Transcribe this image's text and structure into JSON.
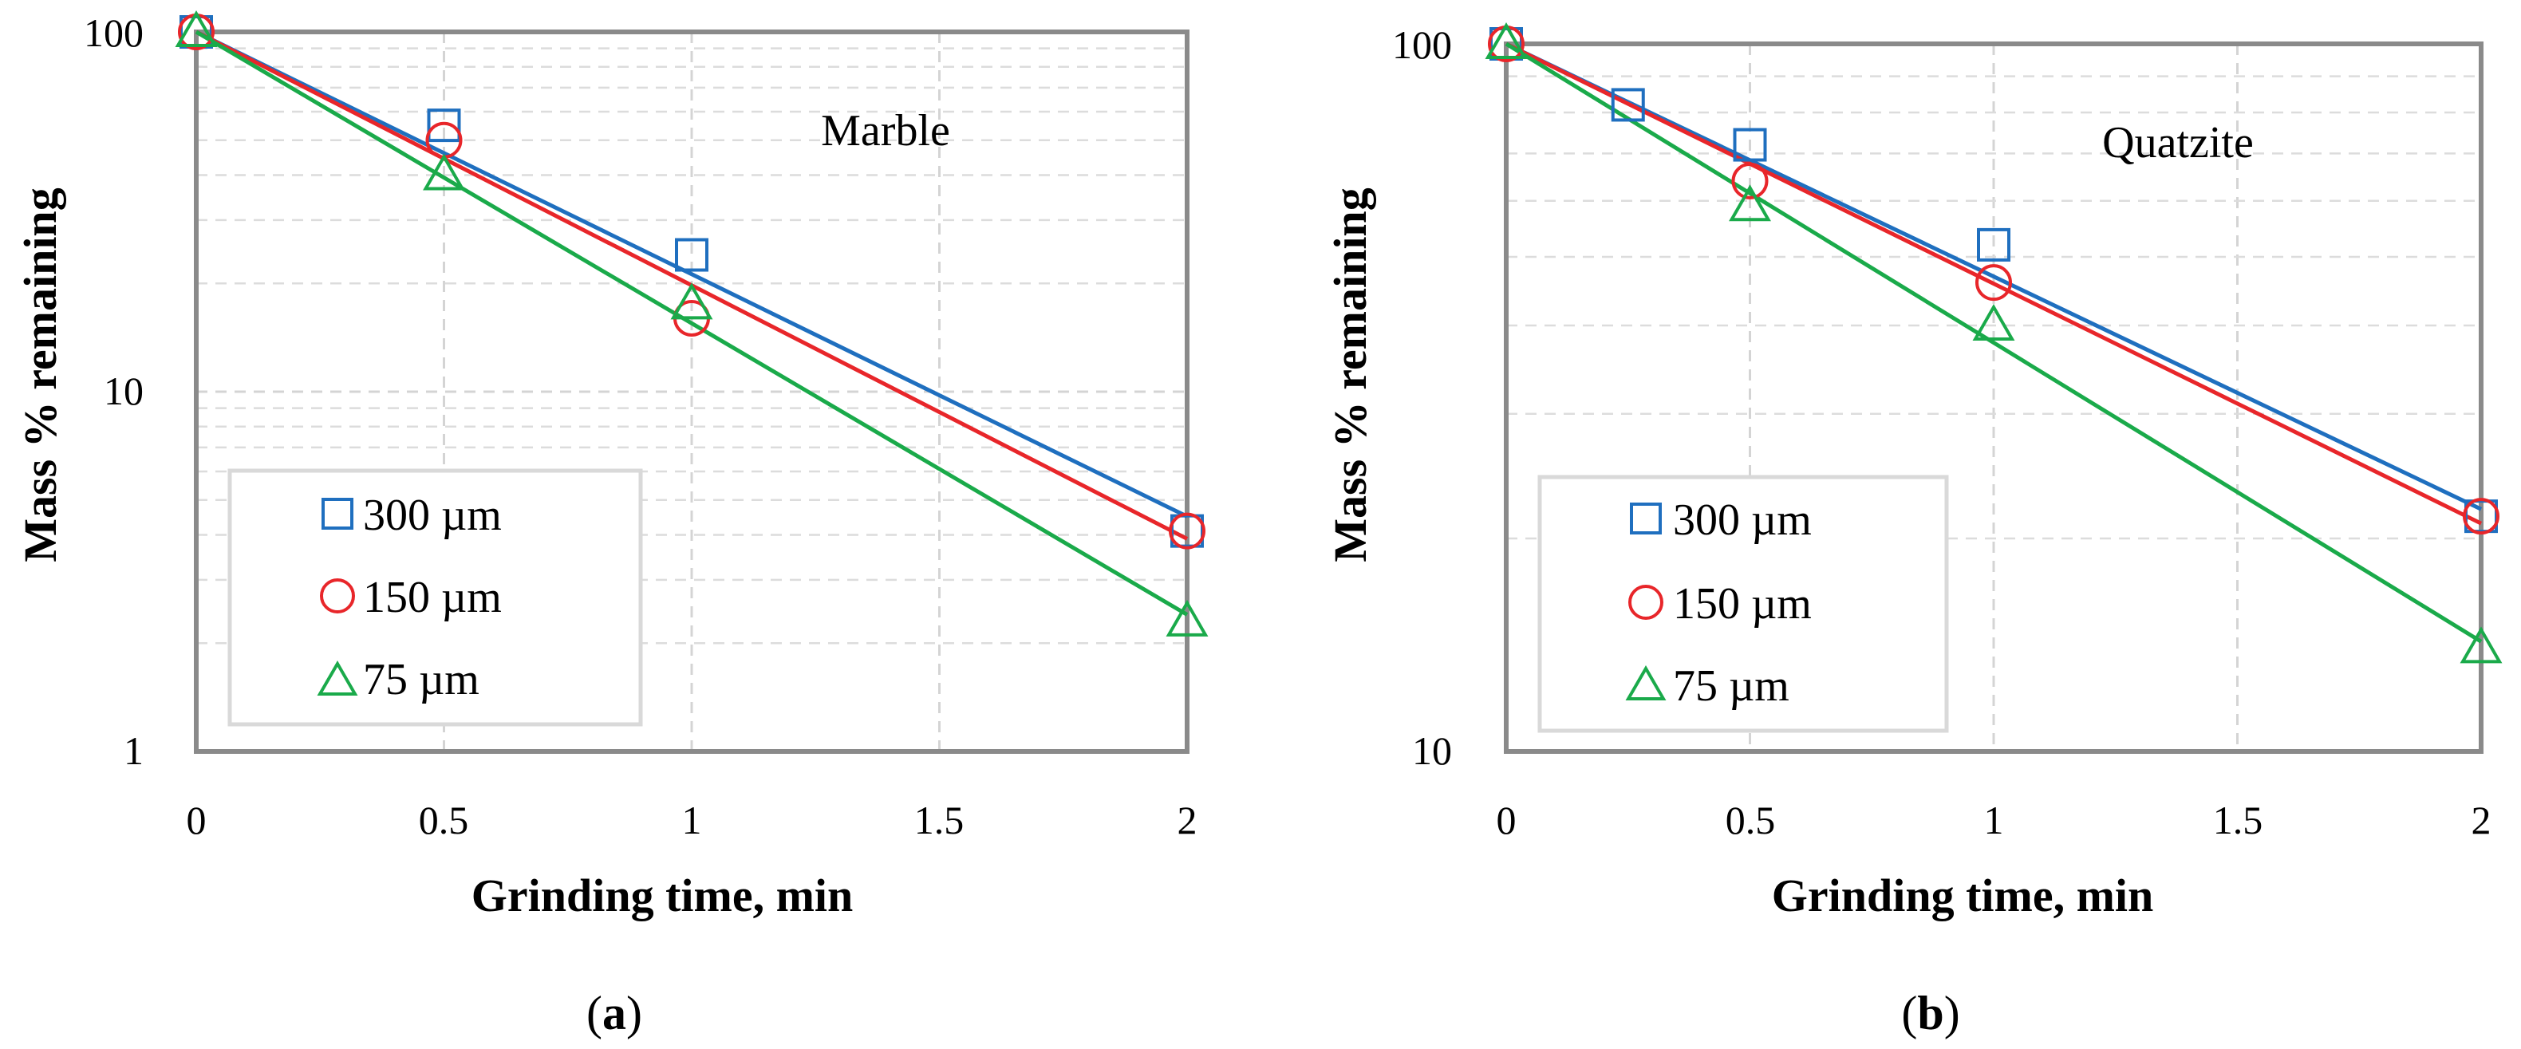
{
  "chart_data": [
    {
      "type": "scatter",
      "panel_label": "(a)",
      "panel_letter": "a",
      "annotation": "Marble",
      "title": "",
      "xlabel": "Grinding time, min",
      "ylabel": "Mass % remaining",
      "xlim": [
        0,
        2
      ],
      "ylim": [
        1,
        100
      ],
      "yscale": "log",
      "xticks": [
        0,
        0.5,
        1,
        1.5,
        2
      ],
      "xtick_labels": [
        "0",
        "0.5",
        "1",
        "1.5",
        "2"
      ],
      "yticks": [
        1,
        10,
        100
      ],
      "ytick_labels": [
        "1",
        "10",
        "100"
      ],
      "grid": true,
      "legend_position": "lower-left",
      "series": [
        {
          "name": "300 µm",
          "marker": "square",
          "color": "#1f6fbf",
          "x": [
            0,
            0.5,
            1,
            2
          ],
          "y": [
            100,
            55,
            24,
            4.1
          ],
          "fit": {
            "x": [
              0,
              2
            ],
            "y": [
              100,
              4.5
            ]
          }
        },
        {
          "name": "150 µm",
          "marker": "circle",
          "color": "#e8262a",
          "x": [
            0,
            0.5,
            1,
            2
          ],
          "y": [
            100,
            50,
            16,
            4.1
          ],
          "fit": {
            "x": [
              0,
              2
            ],
            "y": [
              100,
              3.9
            ]
          }
        },
        {
          "name": "75 µm",
          "marker": "triangle",
          "color": "#1aaa4a",
          "x": [
            0,
            0.5,
            1,
            2
          ],
          "y": [
            100,
            40,
            17.5,
            2.3
          ],
          "fit": {
            "x": [
              0,
              2
            ],
            "y": [
              100,
              2.4
            ]
          }
        }
      ]
    },
    {
      "type": "scatter",
      "panel_label": "(b)",
      "panel_letter": "b",
      "annotation": "Quatzite",
      "title": "",
      "xlabel": "Grinding time, min",
      "ylabel": "Mass % remaining",
      "xlim": [
        0,
        2
      ],
      "ylim": [
        10,
        100
      ],
      "yscale": "log",
      "xticks": [
        0,
        0.5,
        1,
        1.5,
        2
      ],
      "xtick_labels": [
        "0",
        "0.5",
        "1",
        "1.5",
        "2"
      ],
      "yticks": [
        10,
        100
      ],
      "ytick_labels": [
        "10",
        "100"
      ],
      "grid": true,
      "legend_position": "lower-left",
      "series": [
        {
          "name": "300 µm",
          "marker": "square",
          "color": "#1f6fbf",
          "x": [
            0,
            0.25,
            0.5,
            1,
            2
          ],
          "y": [
            100,
            82,
            72,
            52,
            21.5
          ],
          "fit": {
            "x": [
              0,
              2
            ],
            "y": [
              100,
              22
            ]
          }
        },
        {
          "name": "150 µm",
          "marker": "circle",
          "color": "#e8262a",
          "x": [
            0,
            0.5,
            1,
            2
          ],
          "y": [
            100,
            64,
            46,
            21.5
          ],
          "fit": {
            "x": [
              0,
              2
            ],
            "y": [
              100,
              21
            ]
          }
        },
        {
          "name": "75 µm",
          "marker": "triangle",
          "color": "#1aaa4a",
          "x": [
            0,
            0.5,
            1,
            2
          ],
          "y": [
            100,
            59,
            40,
            14
          ],
          "fit": {
            "x": [
              0,
              2
            ],
            "y": [
              100,
              14.3
            ]
          }
        }
      ]
    }
  ]
}
